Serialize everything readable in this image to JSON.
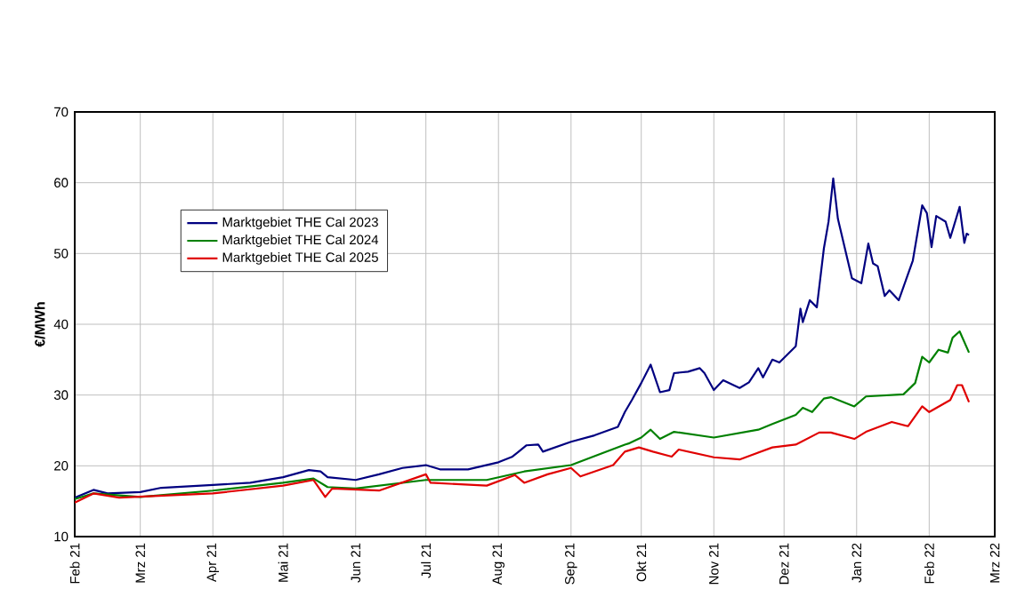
{
  "chart_data": {
    "type": "line",
    "ylabel": "€/MWh",
    "xlim": [
      "2021-02-01",
      "2022-03-01"
    ],
    "xticks": [
      {
        "value": "2021-02-01",
        "label": "Feb 21"
      },
      {
        "value": "2021-03-01",
        "label": "Mrz 21"
      },
      {
        "value": "2021-04-01",
        "label": "Apr 21"
      },
      {
        "value": "2021-05-01",
        "label": "Mai 21"
      },
      {
        "value": "2021-06-01",
        "label": "Jun 21"
      },
      {
        "value": "2021-07-01",
        "label": "Jul 21"
      },
      {
        "value": "2021-08-01",
        "label": "Aug 21"
      },
      {
        "value": "2021-09-01",
        "label": "Sep 21"
      },
      {
        "value": "2021-10-01",
        "label": "Okt 21"
      },
      {
        "value": "2021-11-01",
        "label": "Nov 21"
      },
      {
        "value": "2021-12-01",
        "label": "Dez 21"
      },
      {
        "value": "2022-01-01",
        "label": "Jan 22"
      },
      {
        "value": "2022-02-01",
        "label": "Feb 22"
      },
      {
        "value": "2022-03-01",
        "label": "Mrz 22"
      }
    ],
    "ylim": [
      10,
      70
    ],
    "yticks": [
      10,
      20,
      30,
      40,
      50,
      60,
      70
    ],
    "grid": true,
    "legend": "top left",
    "marker": "none",
    "line_style": "solid",
    "series": [
      {
        "name": "Marktgebiet THE  Cal 2023",
        "color": "#000080",
        "x": [
          "2021-02-01",
          "2021-02-09",
          "2021-02-15",
          "2021-03-01",
          "2021-03-10",
          "2021-04-01",
          "2021-04-17",
          "2021-05-01",
          "2021-05-12",
          "2021-05-17",
          "2021-05-20",
          "2021-06-01",
          "2021-06-11",
          "2021-06-21",
          "2021-07-01",
          "2021-07-07",
          "2021-07-19",
          "2021-08-01",
          "2021-08-07",
          "2021-08-13",
          "2021-08-18",
          "2021-08-20",
          "2021-09-01",
          "2021-09-11",
          "2021-09-21",
          "2021-09-24",
          "2021-09-27",
          "2021-10-01",
          "2021-10-05",
          "2021-10-09",
          "2021-10-13",
          "2021-10-15",
          "2021-10-21",
          "2021-10-26",
          "2021-10-28",
          "2021-11-01",
          "2021-11-05",
          "2021-11-12",
          "2021-11-16",
          "2021-11-20",
          "2021-11-22",
          "2021-11-26",
          "2021-11-29",
          "2021-12-06",
          "2021-12-08",
          "2021-12-09",
          "2021-12-12",
          "2021-12-15",
          "2021-12-18",
          "2021-12-20",
          "2021-12-22",
          "2021-12-24",
          "2021-12-30",
          "2022-01-03",
          "2022-01-06",
          "2022-01-08",
          "2022-01-10",
          "2022-01-13",
          "2022-01-15",
          "2022-01-19",
          "2022-01-25",
          "2022-01-29",
          "2022-01-31",
          "2022-02-02",
          "2022-02-04",
          "2022-02-08",
          "2022-02-10",
          "2022-02-14",
          "2022-02-16",
          "2022-02-17",
          "2022-02-18"
        ],
        "values": [
          15.5,
          16.6,
          16.1,
          16.3,
          16.9,
          17.3,
          17.6,
          18.4,
          19.4,
          19.2,
          18.4,
          18.0,
          18.8,
          19.7,
          20.1,
          19.5,
          19.5,
          20.5,
          21.3,
          22.9,
          23.0,
          22.0,
          23.4,
          24.3,
          25.5,
          27.6,
          29.3,
          31.7,
          34.3,
          30.4,
          30.7,
          33.1,
          33.3,
          33.8,
          33.1,
          30.7,
          32.1,
          31.0,
          31.8,
          33.8,
          32.5,
          35.0,
          34.6,
          36.9,
          42.2,
          40.3,
          43.4,
          42.4,
          50.7,
          54.5,
          60.6,
          54.9,
          46.5,
          45.8,
          51.4,
          48.6,
          48.2,
          44.0,
          44.8,
          43.4,
          49.0,
          56.8,
          55.7,
          50.9,
          55.3,
          54.5,
          52.2,
          56.6,
          51.5,
          52.8,
          52.6
        ]
      },
      {
        "name": "Marktgebiet THE  Cal 2024",
        "color": "#008000",
        "x": [
          "2021-02-01",
          "2021-02-09",
          "2021-03-01",
          "2021-04-01",
          "2021-05-01",
          "2021-05-14",
          "2021-05-20",
          "2021-06-01",
          "2021-07-01",
          "2021-07-27",
          "2021-08-12",
          "2021-09-01",
          "2021-09-24",
          "2021-09-26",
          "2021-10-01",
          "2021-10-05",
          "2021-10-09",
          "2021-10-15",
          "2021-11-01",
          "2021-11-20",
          "2021-11-26",
          "2021-12-06",
          "2021-12-09",
          "2021-12-13",
          "2021-12-18",
          "2021-12-21",
          "2021-12-31",
          "2022-01-05",
          "2022-01-21",
          "2022-01-26",
          "2022-01-29",
          "2022-02-01",
          "2022-02-05",
          "2022-02-09",
          "2022-02-11",
          "2022-02-14",
          "2022-02-18"
        ],
        "values": [
          15.3,
          16.1,
          15.6,
          16.5,
          17.6,
          18.2,
          17.0,
          16.8,
          18.0,
          18.0,
          19.2,
          20.1,
          23.0,
          23.2,
          24.0,
          25.1,
          23.8,
          24.8,
          24.0,
          25.1,
          25.9,
          27.2,
          28.2,
          27.6,
          29.5,
          29.7,
          28.4,
          29.8,
          30.1,
          31.7,
          35.4,
          34.6,
          36.4,
          36.0,
          38.1,
          39.0,
          36.0
        ]
      },
      {
        "name": "Marktgebiet THE  Cal 2025",
        "color": "#e00000",
        "x": [
          "2021-02-01",
          "2021-02-09",
          "2021-02-20",
          "2021-04-01",
          "2021-05-01",
          "2021-05-14",
          "2021-05-19",
          "2021-05-22",
          "2021-06-11",
          "2021-07-01",
          "2021-07-03",
          "2021-07-27",
          "2021-08-08",
          "2021-08-12",
          "2021-08-22",
          "2021-09-01",
          "2021-09-05",
          "2021-09-19",
          "2021-09-24",
          "2021-09-30",
          "2021-10-06",
          "2021-10-14",
          "2021-10-17",
          "2021-11-01",
          "2021-11-12",
          "2021-11-26",
          "2021-12-06",
          "2021-12-16",
          "2021-12-21",
          "2021-12-31",
          "2022-01-05",
          "2022-01-16",
          "2022-01-23",
          "2022-01-29",
          "2022-02-01",
          "2022-02-10",
          "2022-02-13",
          "2022-02-15",
          "2022-02-18"
        ],
        "values": [
          14.8,
          16.1,
          15.5,
          16.1,
          17.2,
          18.0,
          15.6,
          16.8,
          16.5,
          18.8,
          17.6,
          17.2,
          18.7,
          17.6,
          18.8,
          19.7,
          18.5,
          20.1,
          22.0,
          22.6,
          22.0,
          21.3,
          22.3,
          21.2,
          20.9,
          22.6,
          23.0,
          24.7,
          24.7,
          23.8,
          24.8,
          26.2,
          25.6,
          28.4,
          27.6,
          29.3,
          31.4,
          31.4,
          29.0
        ]
      }
    ]
  }
}
